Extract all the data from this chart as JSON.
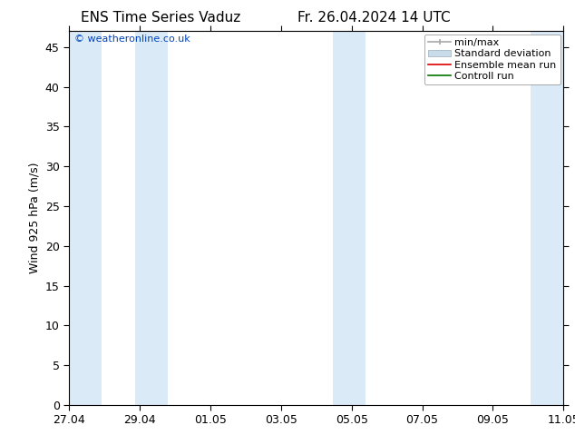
{
  "title": "ENS Time Series Vaduz",
  "subtitle": "Fr. 26.04.2024 14 UTC",
  "ylabel": "Wind 925 hPa (m/s)",
  "watermark": "© weatheronline.co.uk",
  "watermark_color": "#0044bb",
  "ylim": [
    0,
    47
  ],
  "yticks": [
    0,
    5,
    10,
    15,
    20,
    25,
    30,
    35,
    40,
    45
  ],
  "xtick_labels": [
    "27.04",
    "29.04",
    "01.05",
    "03.05",
    "05.05",
    "07.05",
    "09.05",
    "11.05"
  ],
  "num_xticks": 8,
  "background_color": "#ffffff",
  "plot_bg_color": "#ffffff",
  "shaded_band_color": "#daeaf7",
  "shaded_bands": [
    [
      0.0,
      1.0
    ],
    [
      2.0,
      3.0
    ],
    [
      8.0,
      9.0
    ],
    [
      14.0,
      15.0
    ]
  ],
  "xlim": [
    0,
    15
  ],
  "legend_entries": [
    {
      "label": "min/max",
      "color": "#a8a8a8",
      "style": "minmax"
    },
    {
      "label": "Standard deviation",
      "color": "#b8cfe0",
      "style": "fill"
    },
    {
      "label": "Ensemble mean run",
      "color": "#dd0000",
      "style": "line"
    },
    {
      "label": "Controll run",
      "color": "#007700",
      "style": "line"
    }
  ],
  "title_fontsize": 11,
  "axis_fontsize": 9,
  "tick_fontsize": 9,
  "legend_fontsize": 8,
  "watermark_fontsize": 8
}
